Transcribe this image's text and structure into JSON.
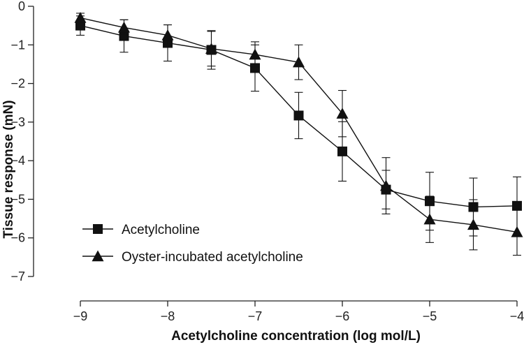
{
  "chart_data": {
    "type": "line",
    "xlabel": "Acetylcholine concentration (log mol/L)",
    "ylabel": "Tissue response (mN)",
    "xlim": [
      -9,
      -4
    ],
    "ylim": [
      -7,
      0
    ],
    "xticks": [
      -9,
      -8,
      -7,
      -6,
      -5,
      -4
    ],
    "yticks": [
      0,
      -1,
      -2,
      -3,
      -4,
      -5,
      -6,
      -7
    ],
    "xtick_labels": [
      "−9",
      "−8",
      "−7",
      "−6",
      "−5",
      "−4"
    ],
    "ytick_labels": [
      "0",
      "−1",
      "−2",
      "−3",
      "−4",
      "−5",
      "−6",
      "−7"
    ],
    "grid": false,
    "legend_position": "bottom-left",
    "series": [
      {
        "name": "Acetylcholine",
        "marker": "square",
        "color": "#111111",
        "x": [
          -9,
          -8.5,
          -8,
          -7.5,
          -7,
          -6.5,
          -6,
          -5.5,
          -5,
          -4.5,
          -4
        ],
        "y": [
          -0.5,
          -0.77,
          -0.95,
          -1.13,
          -1.6,
          -2.83,
          -3.76,
          -4.75,
          -5.05,
          -5.2,
          -5.17
        ],
        "err": [
          0.25,
          0.42,
          0.47,
          0.5,
          0.6,
          0.6,
          0.77,
          0.5,
          0.75,
          0.75,
          0.75
        ]
      },
      {
        "name": "Oyster-incubated acetylcholine",
        "marker": "triangle",
        "color": "#111111",
        "x": [
          -9,
          -8.5,
          -8,
          -7.5,
          -7,
          -6.5,
          -6,
          -5.5,
          -5,
          -4.5,
          -4
        ],
        "y": [
          -0.3,
          -0.55,
          -0.75,
          -1.1,
          -1.25,
          -1.45,
          -2.78,
          -4.65,
          -5.52,
          -5.66,
          -5.85
        ],
        "err": [
          0.12,
          0.2,
          0.27,
          0.45,
          0.33,
          0.45,
          0.6,
          0.73,
          0.6,
          0.65,
          0.6
        ]
      }
    ]
  }
}
